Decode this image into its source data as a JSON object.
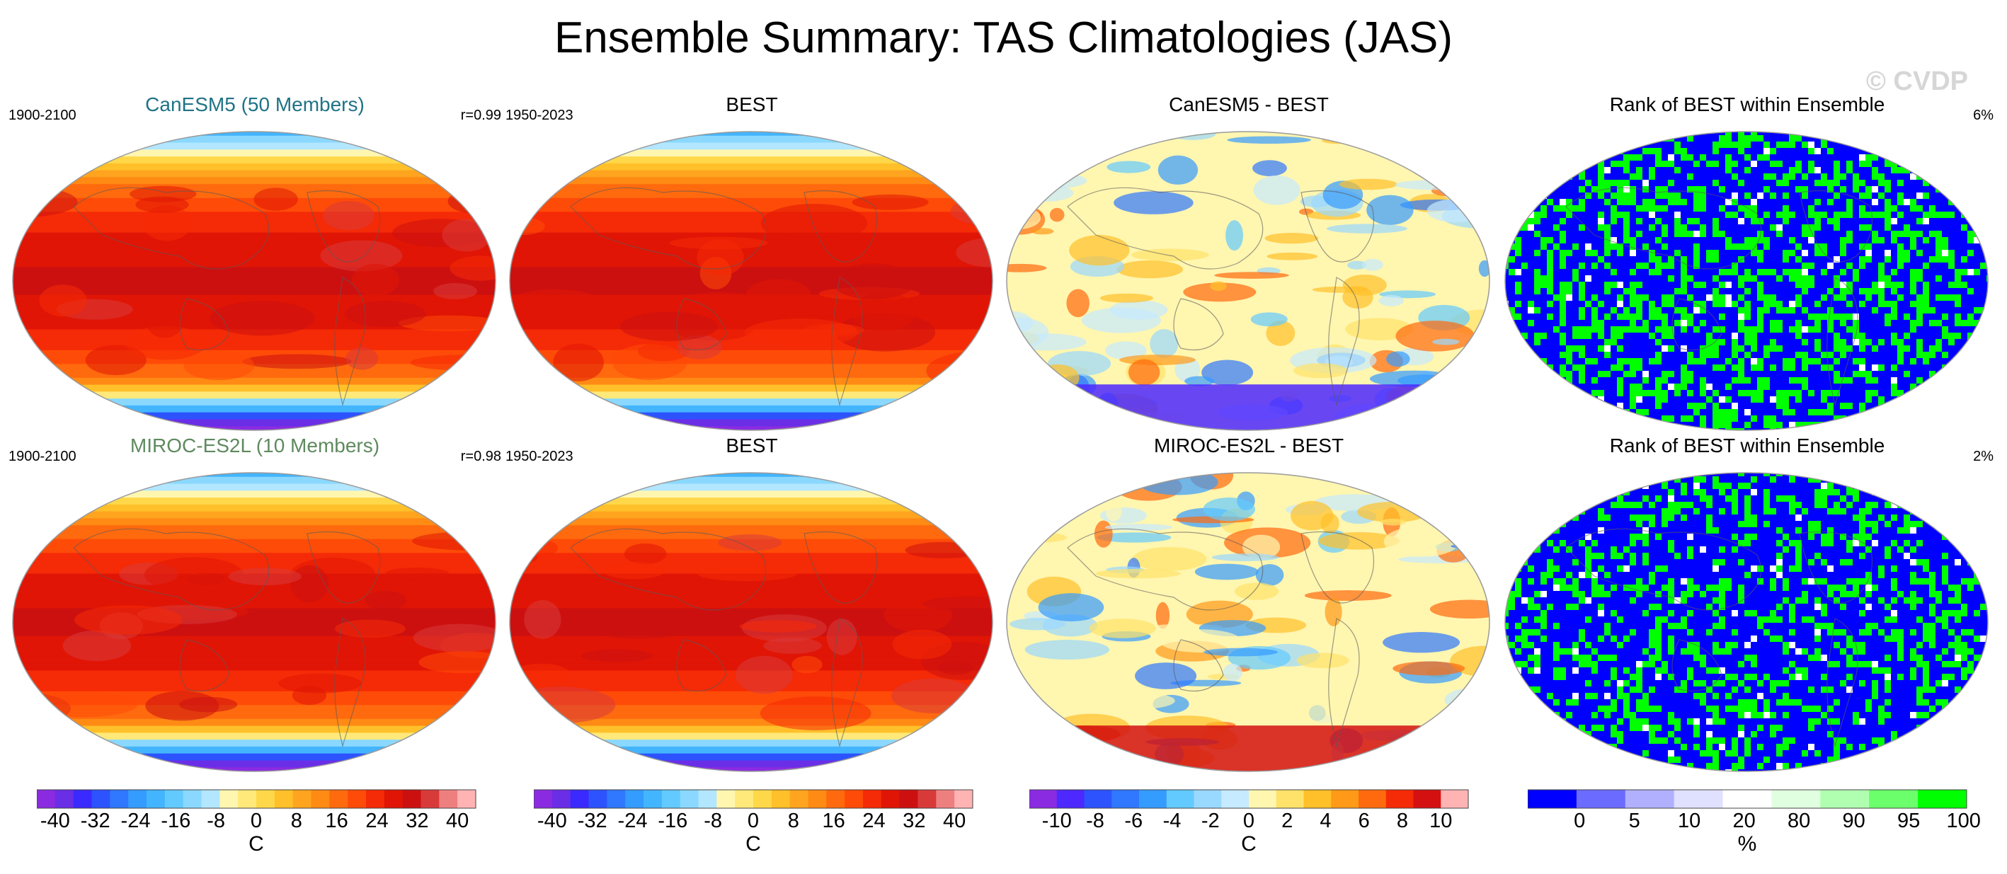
{
  "title": "Ensemble Summary: TAS Climatologies (JAS)",
  "watermark": "© CVDP",
  "panels": [
    {
      "title": "CanESM5 (50 Members)",
      "title_color": "#1f7385",
      "left": "1900-2100",
      "right": "r=0.99",
      "kind": "clim"
    },
    {
      "title": "BEST",
      "title_color": "#000000",
      "left": "1950-2023",
      "right": "",
      "kind": "clim"
    },
    {
      "title": "CanESM5 - BEST",
      "title_color": "#000000",
      "left": "",
      "right": "",
      "kind": "diff"
    },
    {
      "title": "Rank of BEST within Ensemble",
      "title_color": "#000000",
      "left": "",
      "right": "6%",
      "kind": "rank"
    },
    {
      "title": "MIROC-ES2L (10 Members)",
      "title_color": "#5f8a5f",
      "left": "1900-2100",
      "right": "r=0.98",
      "kind": "clim"
    },
    {
      "title": "BEST",
      "title_color": "#000000",
      "left": "1950-2023",
      "right": "",
      "kind": "clim"
    },
    {
      "title": "MIROC-ES2L - BEST",
      "title_color": "#000000",
      "left": "",
      "right": "",
      "kind": "diff"
    },
    {
      "title": "Rank of BEST within Ensemble",
      "title_color": "#000000",
      "left": "",
      "right": "2%",
      "kind": "rank"
    }
  ],
  "colorbars": [
    {
      "units": "C",
      "labels": [
        "-40",
        "-32",
        "-24",
        "-16",
        "-8",
        "0",
        "8",
        "16",
        "24",
        "32",
        "40"
      ],
      "colors": [
        "#8a2be2",
        "#6a2ee6",
        "#3a2aff",
        "#2d53ff",
        "#2f78ff",
        "#349bff",
        "#43b5ff",
        "#63caff",
        "#8ad8ff",
        "#b3e6ff",
        "#fff6b0",
        "#ffe97a",
        "#ffd84a",
        "#ffc02a",
        "#ffa41e",
        "#ff8a14",
        "#ff6a0e",
        "#ff4b08",
        "#f52a06",
        "#e01505",
        "#cc1010",
        "#d83a3a",
        "#ee7f7f",
        "#ffb3b3"
      ]
    },
    {
      "units": "C",
      "labels": [
        "-40",
        "-32",
        "-24",
        "-16",
        "-8",
        "0",
        "8",
        "16",
        "24",
        "32",
        "40"
      ],
      "colors": [
        "#8a2be2",
        "#6a2ee6",
        "#3a2aff",
        "#2d53ff",
        "#2f78ff",
        "#349bff",
        "#43b5ff",
        "#63caff",
        "#8ad8ff",
        "#b3e6ff",
        "#fff6b0",
        "#ffe97a",
        "#ffd84a",
        "#ffc02a",
        "#ffa41e",
        "#ff8a14",
        "#ff6a0e",
        "#ff4b08",
        "#f52a06",
        "#e01505",
        "#cc1010",
        "#d83a3a",
        "#ee7f7f",
        "#ffb3b3"
      ]
    },
    {
      "units": "C",
      "labels": [
        "-10",
        "-8",
        "-6",
        "-4",
        "-2",
        "0",
        "2",
        "4",
        "6",
        "8",
        "10"
      ],
      "colors": [
        "#8a2be2",
        "#4d28ff",
        "#2d53ff",
        "#2f78ff",
        "#349bff",
        "#63caff",
        "#9ad9ff",
        "#c6eaff",
        "#fff6b0",
        "#ffe26a",
        "#ffc02a",
        "#ff9a18",
        "#ff6a0e",
        "#f52a06",
        "#d41010",
        "#ffb3b3"
      ]
    },
    {
      "units": "%",
      "labels": [
        "0",
        "5",
        "10",
        "20",
        "80",
        "90",
        "95",
        "100"
      ],
      "colors": [
        "#0000ff",
        "#6b6bff",
        "#b0b0ff",
        "#e0e0ff",
        "#ffffff",
        "#e0ffe0",
        "#b0ffb0",
        "#6bff6b",
        "#00ff00"
      ]
    }
  ]
}
